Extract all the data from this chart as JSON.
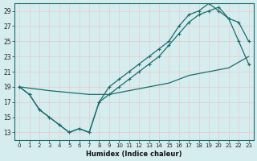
{
  "xlabel": "Humidex (Indice chaleur)",
  "bg_color": "#d6edf0",
  "grid_color": "#c8dde0",
  "line_color": "#1a6b6b",
  "xlim": [
    -0.5,
    23.5
  ],
  "ylim": [
    12,
    30
  ],
  "xticks": [
    0,
    1,
    2,
    3,
    4,
    5,
    6,
    7,
    8,
    9,
    10,
    11,
    12,
    13,
    14,
    15,
    16,
    17,
    18,
    19,
    20,
    21,
    22,
    23
  ],
  "yticks": [
    13,
    15,
    17,
    19,
    21,
    23,
    25,
    27,
    29
  ],
  "line1_x": [
    0,
    1,
    2,
    3,
    4,
    5,
    6,
    7,
    8,
    9,
    10,
    11,
    12,
    13,
    14,
    15,
    16,
    17,
    18,
    19,
    20,
    21,
    22,
    23
  ],
  "line1_y": [
    19,
    18,
    16,
    15,
    14,
    13,
    13.5,
    13,
    17,
    18,
    19,
    20,
    21,
    22,
    23,
    24.5,
    26,
    27.5,
    28.5,
    29,
    29.5,
    28,
    25,
    22
  ],
  "line2_x": [
    0,
    1,
    2,
    3,
    4,
    5,
    6,
    7,
    8,
    9,
    10,
    11,
    12,
    13,
    14,
    15,
    16,
    17,
    18,
    19,
    20,
    21,
    22,
    23
  ],
  "line2_y": [
    19,
    18,
    16,
    15,
    14,
    13,
    13.5,
    13,
    17,
    19,
    20,
    21,
    22,
    23,
    24,
    25,
    27,
    28.5,
    29,
    30,
    29,
    28,
    27.5,
    25
  ],
  "line3_x": [
    0,
    3,
    7,
    9,
    11,
    13,
    15,
    17,
    19,
    21,
    23
  ],
  "line3_y": [
    19,
    18.5,
    18,
    18,
    18.5,
    19,
    19.5,
    20.5,
    21,
    21.5,
    23
  ]
}
